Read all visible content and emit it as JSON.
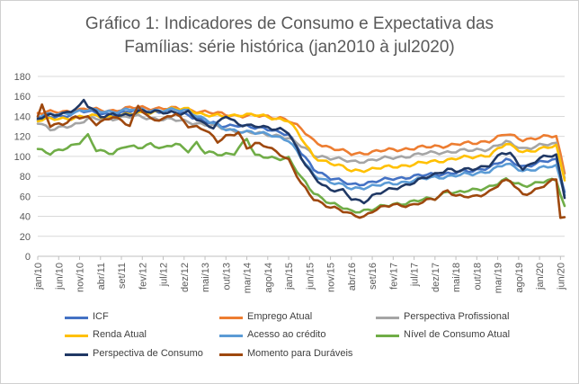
{
  "chart_data": {
    "type": "line",
    "title_line1": "Gráfico 1: Indicadores de Consumo e Expectativa das",
    "title_line2": "Famílias: série histórica (jan2010 à jul2020)",
    "ylim": [
      0,
      180
    ],
    "yticks": [
      "0",
      "20",
      "40",
      "60",
      "80",
      "100",
      "120",
      "140",
      "160",
      "180"
    ],
    "grid": true,
    "legend_position": "bottom",
    "x_labels": [
      "jan/10",
      "jun/10",
      "nov/10",
      "abr/11",
      "set/11",
      "fev/12",
      "jul/12",
      "dez/12",
      "mai/13",
      "out/13",
      "mar/14",
      "ago/14",
      "jan/15",
      "jun/15",
      "nov/15",
      "abr/16",
      "set/16",
      "fev/17",
      "jul/17",
      "dez/17",
      "mai/18",
      "out/18",
      "mar/19",
      "ago/19",
      "jan/20",
      "jun/20"
    ],
    "x_label_months": [
      0,
      5,
      10,
      15,
      20,
      25,
      30,
      35,
      40,
      45,
      50,
      55,
      60,
      65,
      70,
      75,
      80,
      85,
      90,
      95,
      100,
      105,
      110,
      115,
      120,
      125
    ],
    "n_points": 127,
    "series": [
      {
        "name": "ICF",
        "color": "#4472C4",
        "width": 2.6,
        "knots": [
          [
            0,
            138
          ],
          [
            6,
            140
          ],
          [
            10,
            146
          ],
          [
            12,
            144
          ],
          [
            18,
            142
          ],
          [
            24,
            146
          ],
          [
            30,
            145
          ],
          [
            36,
            142
          ],
          [
            40,
            135
          ],
          [
            44,
            130
          ],
          [
            48,
            132
          ],
          [
            52,
            128
          ],
          [
            56,
            127
          ],
          [
            60,
            122
          ],
          [
            63,
            103
          ],
          [
            66,
            88
          ],
          [
            70,
            78
          ],
          [
            75,
            72
          ],
          [
            80,
            74
          ],
          [
            85,
            78
          ],
          [
            90,
            80
          ],
          [
            95,
            82
          ],
          [
            100,
            84
          ],
          [
            104,
            85
          ],
          [
            108,
            90
          ],
          [
            112,
            96
          ],
          [
            116,
            90
          ],
          [
            120,
            94
          ],
          [
            124,
            96
          ],
          [
            126,
            66
          ]
        ]
      },
      {
        "name": "Emprego Atual",
        "color": "#ED7D31",
        "width": 2.6,
        "knots": [
          [
            0,
            143
          ],
          [
            6,
            145
          ],
          [
            12,
            147
          ],
          [
            18,
            146
          ],
          [
            24,
            149
          ],
          [
            30,
            148
          ],
          [
            36,
            147
          ],
          [
            42,
            143
          ],
          [
            48,
            141
          ],
          [
            54,
            140
          ],
          [
            58,
            139
          ],
          [
            60,
            136
          ],
          [
            63,
            127
          ],
          [
            66,
            116
          ],
          [
            70,
            108
          ],
          [
            75,
            103
          ],
          [
            80,
            104
          ],
          [
            85,
            107
          ],
          [
            90,
            108
          ],
          [
            95,
            110
          ],
          [
            100,
            112
          ],
          [
            104,
            113
          ],
          [
            108,
            116
          ],
          [
            112,
            122
          ],
          [
            116,
            117
          ],
          [
            120,
            119
          ],
          [
            124,
            120
          ],
          [
            126,
            84
          ]
        ]
      },
      {
        "name": "Perspectiva Profissional",
        "color": "#A5A5A5",
        "width": 2.6,
        "knots": [
          [
            0,
            134
          ],
          [
            3,
            126
          ],
          [
            6,
            130
          ],
          [
            10,
            133
          ],
          [
            12,
            137
          ],
          [
            18,
            138
          ],
          [
            24,
            140
          ],
          [
            30,
            137
          ],
          [
            36,
            135
          ],
          [
            42,
            130
          ],
          [
            48,
            125
          ],
          [
            54,
            122
          ],
          [
            58,
            121
          ],
          [
            60,
            118
          ],
          [
            63,
            110
          ],
          [
            66,
            102
          ],
          [
            70,
            98
          ],
          [
            75,
            95
          ],
          [
            80,
            96
          ],
          [
            85,
            99
          ],
          [
            90,
            101
          ],
          [
            95,
            104
          ],
          [
            100,
            105
          ],
          [
            104,
            106
          ],
          [
            108,
            108
          ],
          [
            112,
            114
          ],
          [
            116,
            108
          ],
          [
            120,
            111
          ],
          [
            124,
            112
          ],
          [
            126,
            80
          ]
        ]
      },
      {
        "name": "Renda Atual",
        "color": "#FFC000",
        "width": 2.6,
        "knots": [
          [
            0,
            136
          ],
          [
            6,
            138
          ],
          [
            12,
            140
          ],
          [
            18,
            140
          ],
          [
            24,
            143
          ],
          [
            30,
            146
          ],
          [
            36,
            148
          ],
          [
            40,
            141
          ],
          [
            44,
            140
          ],
          [
            48,
            142
          ],
          [
            52,
            141
          ],
          [
            56,
            139
          ],
          [
            60,
            136
          ],
          [
            63,
            118
          ],
          [
            66,
            100
          ],
          [
            70,
            93
          ],
          [
            75,
            86
          ],
          [
            80,
            87
          ],
          [
            85,
            90
          ],
          [
            90,
            92
          ],
          [
            95,
            95
          ],
          [
            100,
            98
          ],
          [
            104,
            99
          ],
          [
            108,
            102
          ],
          [
            112,
            112
          ],
          [
            116,
            105
          ],
          [
            120,
            107
          ],
          [
            124,
            110
          ],
          [
            126,
            78
          ]
        ]
      },
      {
        "name": "Acesso ao crédito",
        "color": "#5B9BD5",
        "width": 2.6,
        "knots": [
          [
            0,
            140
          ],
          [
            6,
            143
          ],
          [
            12,
            146
          ],
          [
            18,
            145
          ],
          [
            24,
            147
          ],
          [
            30,
            146
          ],
          [
            36,
            146
          ],
          [
            40,
            137
          ],
          [
            44,
            128
          ],
          [
            48,
            126
          ],
          [
            52,
            123
          ],
          [
            56,
            122
          ],
          [
            60,
            116
          ],
          [
            63,
            98
          ],
          [
            66,
            82
          ],
          [
            70,
            74
          ],
          [
            75,
            68
          ],
          [
            80,
            70
          ],
          [
            85,
            73
          ],
          [
            90,
            76
          ],
          [
            95,
            79
          ],
          [
            100,
            81
          ],
          [
            104,
            82
          ],
          [
            108,
            86
          ],
          [
            112,
            92
          ],
          [
            116,
            86
          ],
          [
            120,
            88
          ],
          [
            124,
            90
          ],
          [
            126,
            63
          ]
        ]
      },
      {
        "name": "Nível de Consumo Atual",
        "color": "#70AD47",
        "width": 2.6,
        "knots": [
          [
            0,
            107
          ],
          [
            3,
            102
          ],
          [
            6,
            108
          ],
          [
            10,
            114
          ],
          [
            12,
            120
          ],
          [
            14,
            106
          ],
          [
            18,
            104
          ],
          [
            21,
            110
          ],
          [
            24,
            108
          ],
          [
            27,
            113
          ],
          [
            30,
            108
          ],
          [
            33,
            112
          ],
          [
            36,
            106
          ],
          [
            38,
            114
          ],
          [
            40,
            104
          ],
          [
            44,
            101
          ],
          [
            47,
            104
          ],
          [
            50,
            118
          ],
          [
            52,
            100
          ],
          [
            56,
            99
          ],
          [
            60,
            98
          ],
          [
            63,
            78
          ],
          [
            66,
            64
          ],
          [
            70,
            53
          ],
          [
            75,
            45
          ],
          [
            80,
            47
          ],
          [
            85,
            52
          ],
          [
            90,
            55
          ],
          [
            95,
            58
          ],
          [
            98,
            66
          ],
          [
            100,
            63
          ],
          [
            104,
            66
          ],
          [
            108,
            70
          ],
          [
            112,
            76
          ],
          [
            116,
            71
          ],
          [
            120,
            74
          ],
          [
            124,
            76
          ],
          [
            126,
            50
          ]
        ]
      },
      {
        "name": "Perspectiva de Consumo",
        "color": "#203864",
        "width": 2.6,
        "knots": [
          [
            0,
            138
          ],
          [
            6,
            143
          ],
          [
            10,
            150
          ],
          [
            11,
            156
          ],
          [
            12,
            150
          ],
          [
            15,
            140
          ],
          [
            18,
            143
          ],
          [
            22,
            140
          ],
          [
            24,
            145
          ],
          [
            28,
            146
          ],
          [
            30,
            144
          ],
          [
            34,
            142
          ],
          [
            36,
            145
          ],
          [
            40,
            132
          ],
          [
            42,
            128
          ],
          [
            45,
            141
          ],
          [
            48,
            133
          ],
          [
            51,
            130
          ],
          [
            54,
            129
          ],
          [
            58,
            128
          ],
          [
            60,
            124
          ],
          [
            63,
            98
          ],
          [
            66,
            80
          ],
          [
            70,
            66
          ],
          [
            73,
            65
          ],
          [
            75,
            58
          ],
          [
            78,
            55
          ],
          [
            80,
            60
          ],
          [
            85,
            68
          ],
          [
            90,
            74
          ],
          [
            95,
            82
          ],
          [
            98,
            88
          ],
          [
            100,
            85
          ],
          [
            104,
            87
          ],
          [
            108,
            92
          ],
          [
            111,
            103
          ],
          [
            113,
            102
          ],
          [
            116,
            88
          ],
          [
            120,
            98
          ],
          [
            124,
            101
          ],
          [
            126,
            60
          ]
        ]
      },
      {
        "name": "Momento para Duráveis",
        "color": "#9E480E",
        "width": 2.6,
        "knots": [
          [
            0,
            140
          ],
          [
            1,
            150
          ],
          [
            3,
            130
          ],
          [
            6,
            133
          ],
          [
            9,
            140
          ],
          [
            12,
            138
          ],
          [
            14,
            132
          ],
          [
            18,
            141
          ],
          [
            22,
            130
          ],
          [
            24,
            150
          ],
          [
            27,
            138
          ],
          [
            30,
            137
          ],
          [
            33,
            142
          ],
          [
            36,
            131
          ],
          [
            38,
            130
          ],
          [
            40,
            127
          ],
          [
            43,
            114
          ],
          [
            45,
            120
          ],
          [
            48,
            125
          ],
          [
            50,
            108
          ],
          [
            52,
            112
          ],
          [
            55,
            110
          ],
          [
            58,
            103
          ],
          [
            60,
            96
          ],
          [
            63,
            72
          ],
          [
            66,
            58
          ],
          [
            70,
            49
          ],
          [
            75,
            42
          ],
          [
            78,
            40
          ],
          [
            80,
            45
          ],
          [
            85,
            52
          ],
          [
            90,
            51
          ],
          [
            95,
            58
          ],
          [
            98,
            67
          ],
          [
            100,
            60
          ],
          [
            104,
            59
          ],
          [
            108,
            65
          ],
          [
            111,
            74
          ],
          [
            113,
            75
          ],
          [
            116,
            62
          ],
          [
            120,
            68
          ],
          [
            124,
            77
          ],
          [
            125,
            40
          ],
          [
            126,
            39
          ]
        ]
      }
    ]
  }
}
